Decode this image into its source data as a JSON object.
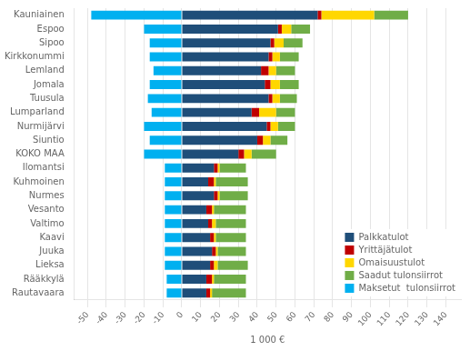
{
  "chart_data": {
    "type": "bar",
    "orientation": "horizontal",
    "stacked": true,
    "categories": [
      "Kauniainen",
      "Espoo",
      "Sipoo",
      "Kirkkonummi",
      "Lemland",
      "Jomala",
      "Tuusula",
      "Lumparland",
      "Nurmijärvi",
      "Siuntio",
      "KOKO MAA",
      "Ilomantsi",
      "Kuhmoinen",
      "Nurmes",
      "Vesanto",
      "Valtimo",
      "Kaavi",
      "Juuka",
      "Lieksa",
      "Rääkkylä",
      "Rautavaara"
    ],
    "series": [
      {
        "name": "Palkkatulot",
        "color": "#1F4E79",
        "values": [
          72,
          51,
          47,
          46,
          42,
          44,
          46,
          37,
          45,
          40,
          30,
          17,
          14,
          17,
          13,
          14,
          15,
          16,
          15,
          13,
          13
        ]
      },
      {
        "name": "Yrittäjätulot",
        "color": "#C00000",
        "values": [
          2,
          2,
          2,
          2,
          4,
          3,
          2,
          4,
          2,
          3,
          3,
          2,
          3,
          2,
          3,
          2,
          2,
          2,
          2,
          3,
          2
        ]
      },
      {
        "name": "Omaisuustulot",
        "color": "#FFD700",
        "values": [
          28,
          5,
          5,
          4,
          4,
          5,
          4,
          9,
          4,
          4,
          4,
          1,
          1,
          1,
          1,
          2,
          1,
          1,
          2,
          1,
          1
        ]
      },
      {
        "name": "Saadut tulonsiirrot",
        "color": "#70AD47",
        "values": [
          18,
          10,
          10,
          10,
          10,
          10,
          9,
          10,
          9,
          9,
          13,
          14,
          17,
          15,
          17,
          16,
          16,
          15,
          16,
          17,
          18
        ]
      },
      {
        "name": "Maksetut  tulonsiirrot",
        "color": "#00B0F0",
        "values": [
          -48,
          -20,
          -17,
          -17,
          -15,
          -17,
          -18,
          -16,
          -20,
          -17,
          -20,
          -9,
          -9,
          -9,
          -9,
          -9,
          -9,
          -9,
          -9,
          -8,
          -8
        ]
      }
    ],
    "xlabel": "1 000 €",
    "xlim": [
      -57,
      148
    ],
    "xticks": [
      -50,
      -40,
      -30,
      -20,
      -10,
      0,
      10,
      20,
      30,
      40,
      50,
      60,
      70,
      80,
      90,
      100,
      110,
      120,
      130,
      140
    ],
    "grid": true,
    "legend": "lower right"
  }
}
